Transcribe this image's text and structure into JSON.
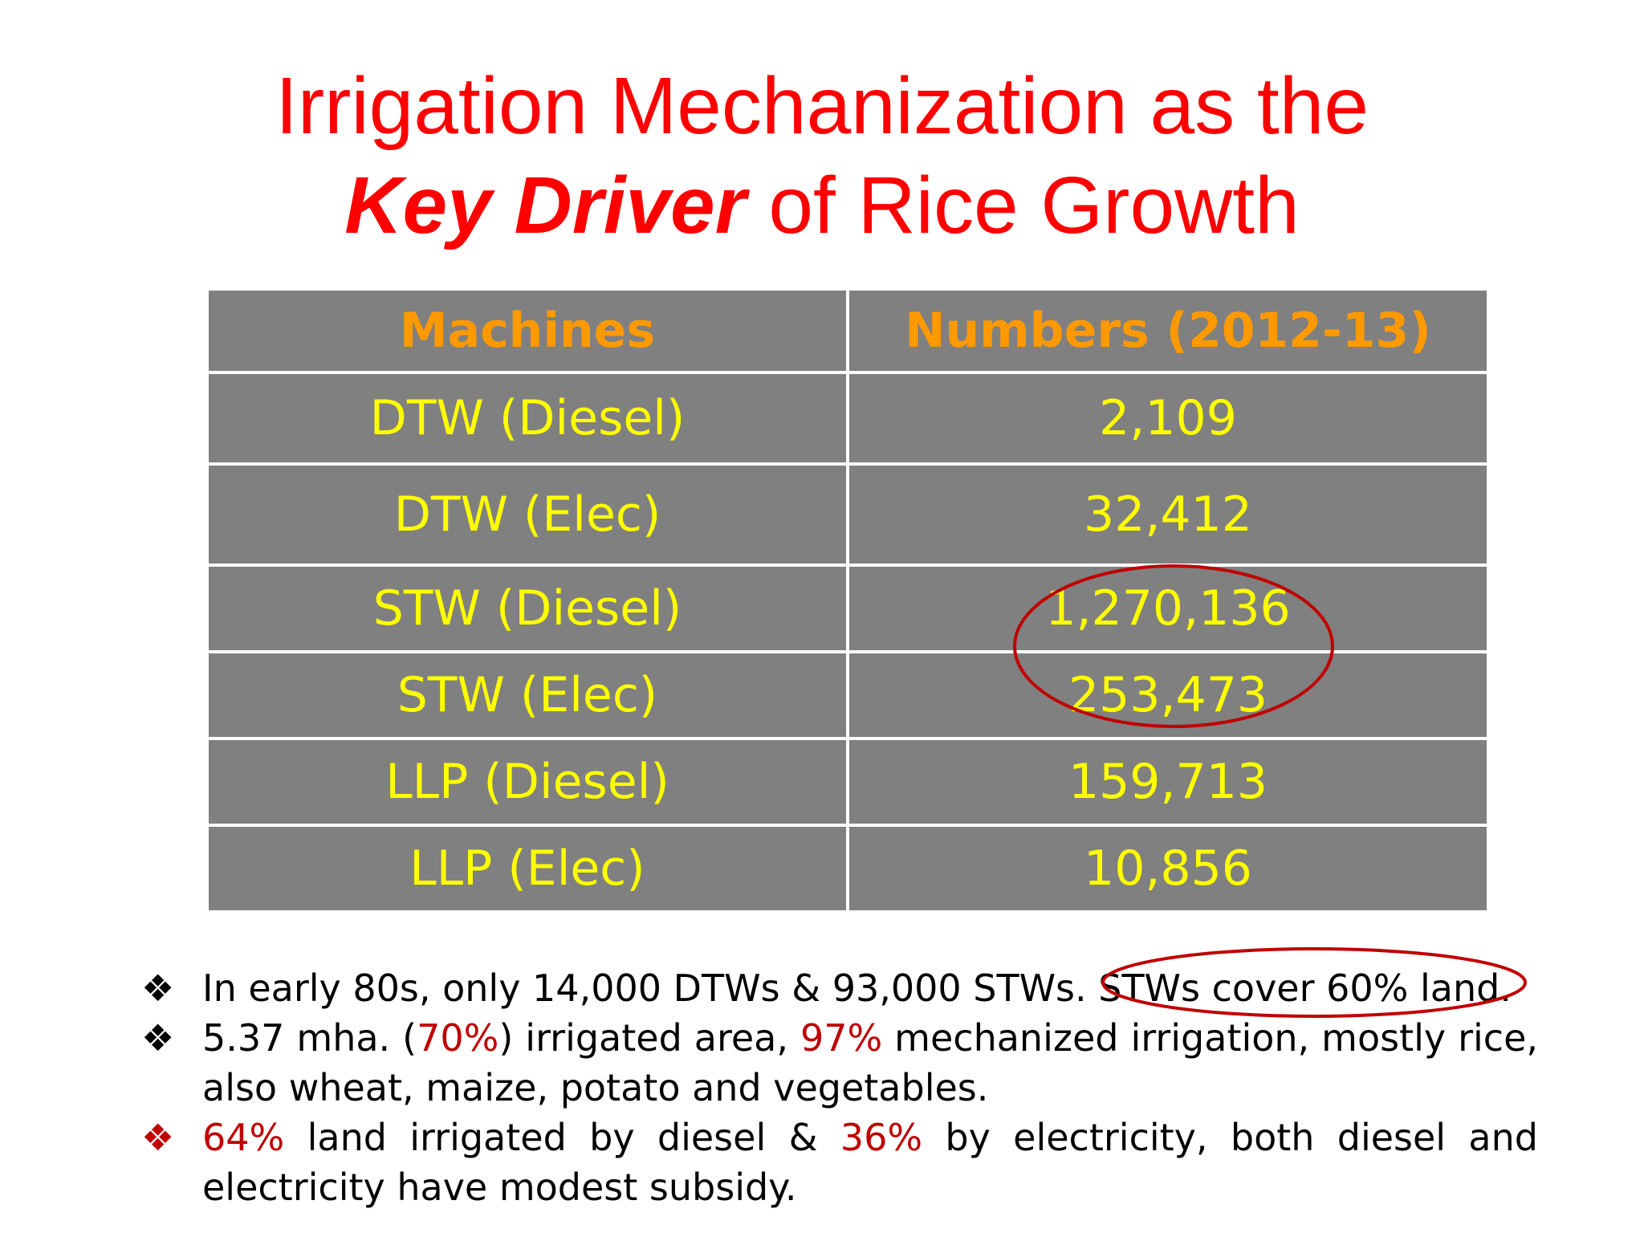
{
  "title": {
    "line1": "Irrigation Mechanization as the",
    "line2_emph": "Key Driver",
    "line2_rest": " of Rice Growth"
  },
  "table": {
    "headers": [
      "Machines",
      "Numbers (2012-13)"
    ],
    "rows": [
      {
        "machine": "DTW (Diesel)",
        "number": "2,109"
      },
      {
        "machine": "DTW (Elec)",
        "number": "32,412"
      },
      {
        "machine": "STW (Diesel)",
        "number": "1,270,136"
      },
      {
        "machine": "STW (Elec)",
        "number": "253,473"
      },
      {
        "machine": "LLP (Diesel)",
        "number": "159,713"
      },
      {
        "machine": "LLP (Elec)",
        "number": "10,856"
      }
    ]
  },
  "bullets": {
    "marker": "❖",
    "b1": "In early 80s, only 14,000 DTWs & 93,000 STWs. STWs cover 60% land.",
    "b2_a": "5.37 mha. (",
    "b2_pct1": "70%",
    "b2_b": ") irrigated  area, ",
    "b2_pct2": "97%",
    "b2_c": " mechanized irrigation, mostly rice, also wheat, maize, potato and vegetables.",
    "b3_pct1": "64%",
    "b3_a": " land irrigated by diesel & ",
    "b3_pct2": "36%",
    "b3_b": " by electricity, both diesel and electricity have modest subsidy."
  },
  "colors": {
    "title": "#ff0000",
    "table_bg": "#808080",
    "header_text": "#ff9900",
    "cell_text": "#ffff00",
    "accent_red": "#c00000"
  }
}
